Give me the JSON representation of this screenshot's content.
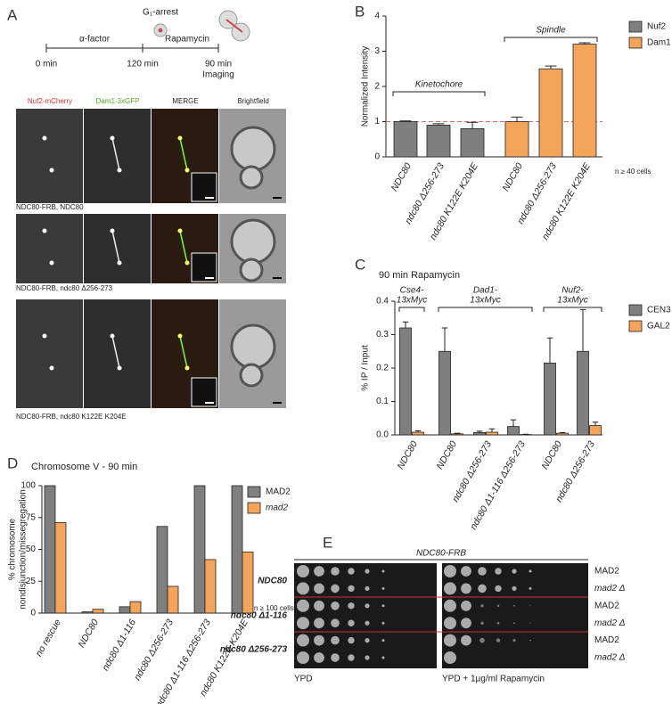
{
  "panel_labels": [
    "A",
    "B",
    "C",
    "D",
    "E"
  ],
  "panel_a": {
    "timeline": {
      "arrest": "G₁-arrest",
      "alpha": "α-factor",
      "rapamycin": "Rapamycin",
      "t0": "0 min",
      "t1": "120 min",
      "t2": "90 min",
      "imaging": "Imaging"
    },
    "columns": [
      "Nuf2-mCherry",
      "Dam1-3xGFP",
      "MERGE",
      "Brightfield"
    ],
    "rows": [
      "NDC80-FRB, NDC80",
      "NDC80-FRB, ndc80 Δ256-273",
      "NDC80-FRB, ndc80 K122E K204E"
    ]
  },
  "chart_data": [
    {
      "type": "bar",
      "y_label": "Normalized Intensity",
      "categories": [
        "NDC80",
        "ndc80 Δ256-273",
        "ndc80 K122E K204E",
        "NDC80",
        "ndc80 Δ256-273",
        "ndc80 K122E K204E"
      ],
      "series": [
        {
          "name": "Nuf2",
          "color": "#7f7f7f",
          "values": [
            1.0,
            0.9,
            0.8,
            null,
            null,
            null
          ],
          "errors": [
            0.02,
            0.04,
            0.18,
            null,
            null,
            null
          ]
        },
        {
          "name": "Dam1",
          "color": "#f5a55a",
          "values": [
            null,
            null,
            null,
            1.0,
            2.5,
            3.2
          ],
          "errors": [
            null,
            null,
            null,
            0.13,
            0.08,
            0.04
          ]
        }
      ],
      "groups": [
        {
          "label": [
            "Kinetochore"
          ]
        },
        {
          "label": [
            "Spindle"
          ]
        }
      ],
      "reference_line": 1,
      "note": "n ≥ 40 cells",
      "ylim": [
        0,
        4
      ],
      "yticks": [
        0,
        1,
        2,
        3,
        4
      ]
    },
    {
      "type": "bar",
      "title": "90 min Rapamycin",
      "y_label": "% IP / Input",
      "categories": [
        "NDC80",
        "NDC80",
        "ndc80 Δ256-273",
        "ndc80 Δ1-116 Δ256-273",
        "NDC80",
        "ndc80 Δ256-273"
      ],
      "series": [
        {
          "name": "CEN3",
          "color": "#7f7f7f",
          "values": [
            0.32,
            0.25,
            0.007,
            0.025,
            0.215,
            0.25
          ],
          "errors": [
            0.018,
            0.07,
            0.004,
            0.02,
            0.075,
            0.125
          ]
        },
        {
          "name": "GAL2",
          "color": "#f5a55a",
          "values": [
            0.008,
            0.003,
            0.008,
            0.001,
            0.005,
            0.028
          ],
          "errors": [
            0.004,
            0.002,
            0.01,
            0.001,
            0.002,
            0.01
          ]
        }
      ],
      "groups": [
        {
          "label": [
            "Cse4-",
            "13xMyc"
          ]
        },
        {
          "label": [
            "Dad1-",
            "13xMyc"
          ]
        },
        {
          "label": [
            "Nuf2-",
            "13xMyc"
          ]
        }
      ],
      "ylim": [
        0,
        0.4
      ],
      "yticks": [
        {
          "value": 0,
          "label": "0.0"
        },
        0.1,
        0.2,
        0.3,
        0.4
      ]
    },
    {
      "type": "bar",
      "title": "Chromosome V - 90 min",
      "y_label": [
        "% chromosome",
        "nondisjunction/missegregation"
      ],
      "categories": [
        "no rescue",
        "NDC80",
        "ndc80 Δ1-116",
        "ndc80 Δ256-273",
        "ndc80 Δ1-116 Δ256-273",
        "ndc80 K122E K204E"
      ],
      "series": [
        {
          "name": "MAD2",
          "color": "#7f7f7f",
          "values": [
            100,
            1,
            5,
            68,
            100,
            100
          ]
        },
        {
          "name": "mad2",
          "color": "#f5a55a",
          "values": [
            71,
            3,
            9,
            21,
            42,
            48
          ]
        }
      ],
      "note": "n ≥ 100 cells",
      "ylim": [
        0,
        100
      ],
      "yticks": [
        0,
        25,
        50,
        75,
        100
      ]
    }
  ],
  "panel_e": {
    "header": "NDC80-FRB",
    "strains": [
      "NDC80",
      "ndc80 Δ1-116",
      "ndc80 Δ256-273"
    ],
    "genotypes": [
      "MAD2",
      "mad2 Δ",
      "MAD2",
      "mad2 Δ",
      "MAD2",
      "mad2 Δ"
    ],
    "conditions": [
      "YPD",
      "YPD + 1µg/ml Rapamycin"
    ]
  }
}
